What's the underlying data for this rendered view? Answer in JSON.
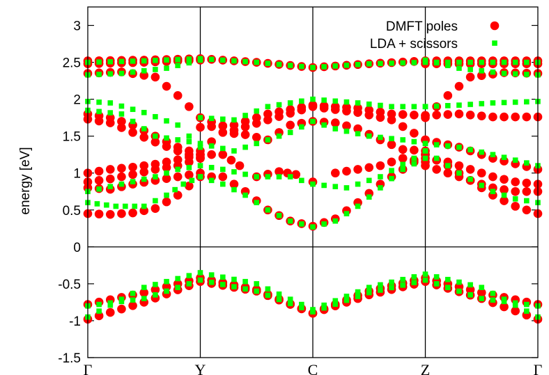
{
  "chart_data": {
    "type": "scatter",
    "title": "",
    "xlabel": "",
    "ylabel": "energy [eV]",
    "ylim": [
      -1.5,
      3.25
    ],
    "xlim": [
      0,
      4
    ],
    "yticks": [
      -1.5,
      -1,
      -0.5,
      0,
      0.5,
      1,
      1.5,
      2,
      2.5,
      3
    ],
    "ytick_labels": [
      "-1.5",
      "-1",
      "-0.5",
      "0",
      "0.5",
      "1",
      "1.5",
      "2",
      "2.5",
      "3"
    ],
    "xticks": [
      0,
      1,
      2,
      3,
      4
    ],
    "xtick_labels": [
      "Γ",
      "Y",
      "C",
      "Z",
      "Γ"
    ],
    "vertical_lines": [
      1,
      2,
      3
    ],
    "horizontal_lines": [
      0
    ],
    "grid": false,
    "legend": "top-right",
    "colors": {
      "dmft": "#ff0000",
      "lda": "#00ff00",
      "axis": "#000000"
    },
    "series": [
      {
        "name": "DMFT poles",
        "marker": "circle",
        "color": "#ff0000",
        "points": []
      },
      {
        "name": "LDA + scissors",
        "marker": "square",
        "color": "#00ff00",
        "points": []
      }
    ],
    "bands": {
      "dmft": [
        {
          "x": [
            0,
            0.5,
            1,
            1.5,
            2,
            2.5,
            3,
            3.5,
            4
          ],
          "y": [
            2.52,
            2.53,
            2.55,
            2.5,
            2.43,
            2.48,
            2.52,
            2.52,
            2.52
          ]
        },
        {
          "x": [
            0,
            0.5,
            1
          ],
          "y": [
            2.48,
            2.5,
            2.53
          ]
        },
        {
          "x": [
            3,
            3.5,
            4
          ],
          "y": [
            2.48,
            2.48,
            2.48
          ]
        },
        {
          "x": [
            0,
            0.3,
            0.6,
            0.8,
            1
          ],
          "y": [
            2.35,
            2.37,
            2.3,
            2.05,
            1.75
          ]
        },
        {
          "x": [
            3,
            3.2,
            3.4,
            3.7,
            4
          ],
          "y": [
            1.75,
            2.05,
            2.3,
            2.36,
            2.35
          ]
        },
        {
          "x": [
            0,
            0.2,
            0.4,
            0.6,
            0.8,
            1
          ],
          "y": [
            1.8,
            1.75,
            1.65,
            1.5,
            1.35,
            1.25
          ]
        },
        {
          "x": [
            0,
            0.2,
            0.4,
            0.6,
            0.8,
            1
          ],
          "y": [
            1.73,
            1.68,
            1.55,
            1.42,
            1.3,
            1.2
          ]
        },
        {
          "x": [
            1,
            1.3,
            1.6,
            2,
            2.4,
            2.7,
            3
          ],
          "y": [
            1.62,
            1.65,
            1.8,
            1.92,
            1.88,
            1.8,
            1.78
          ]
        },
        {
          "x": [
            1,
            1.3,
            1.6,
            2,
            2.4,
            2.7,
            3
          ],
          "y": [
            1.75,
            1.58,
            1.72,
            1.9,
            1.82,
            1.72,
            1.45
          ]
        },
        {
          "x": [
            3,
            3.3,
            3.6,
            4
          ],
          "y": [
            1.78,
            1.8,
            1.76,
            1.76
          ]
        },
        {
          "x": [
            3,
            3.3,
            3.6,
            4
          ],
          "y": [
            1.45,
            1.35,
            1.2,
            1.05
          ]
        },
        {
          "x": [
            1,
            1.2,
            1.4,
            1.6,
            1.8,
            2,
            2.2,
            2.4,
            2.6,
            2.8,
            3
          ],
          "y": [
            1.3,
            1.55,
            1.52,
            1.45,
            1.65,
            1.7,
            1.68,
            1.6,
            1.45,
            1.32,
            1.3
          ]
        },
        {
          "x": [
            1,
            1.1,
            1.2,
            1.35,
            1.5,
            1.7,
            1.85,
            2
          ],
          "y": [
            1.22,
            1.25,
            1.25,
            1.1,
            0.95,
            1.02,
            0.98,
            0.88
          ]
        },
        {
          "x": [
            2.2,
            2.4,
            2.6,
            2.8,
            3
          ],
          "y": [
            1.0,
            1.05,
            1.1,
            1.2,
            1.15
          ]
        },
        {
          "x": [
            0,
            0.2,
            0.4,
            0.6,
            0.8,
            1
          ],
          "y": [
            1.0,
            1.05,
            1.08,
            1.12,
            1.18,
            1.25
          ]
        },
        {
          "x": [
            0,
            0.2,
            0.4,
            0.6,
            0.8,
            1
          ],
          "y": [
            0.88,
            0.92,
            0.98,
            1.05,
            1.1,
            1.2
          ]
        },
        {
          "x": [
            0,
            0.2,
            0.4,
            0.6,
            0.8,
            1
          ],
          "y": [
            0.8,
            0.78,
            0.85,
            0.9,
            0.95,
            1.0
          ]
        },
        {
          "x": [
            3,
            3.2,
            3.4,
            3.6,
            3.8,
            4
          ],
          "y": [
            1.2,
            1.15,
            1.05,
            0.95,
            0.88,
            0.85
          ]
        },
        {
          "x": [
            3,
            3.2,
            3.4,
            3.6,
            3.8,
            4
          ],
          "y": [
            1.1,
            1.0,
            0.9,
            0.8,
            0.75,
            0.75
          ]
        },
        {
          "x": [
            0,
            0.2,
            0.4,
            0.6,
            0.8,
            1,
            1.2,
            1.4,
            1.6,
            1.8,
            2,
            2.2,
            2.4,
            2.6,
            2.8,
            3
          ],
          "y": [
            0.45,
            0.44,
            0.46,
            0.52,
            0.7,
            0.95,
            0.95,
            0.75,
            0.5,
            0.35,
            0.28,
            0.38,
            0.6,
            0.85,
            1.05,
            1.25
          ]
        },
        {
          "x": [
            3,
            3.2,
            3.4,
            3.6,
            3.8,
            4
          ],
          "y": [
            1.25,
            1.1,
            0.9,
            0.7,
            0.55,
            0.45
          ]
        },
        {
          "x": [
            0,
            0.5,
            1,
            1.5,
            2,
            2.5,
            3,
            3.5,
            4
          ],
          "y": [
            -0.98,
            -0.75,
            -0.47,
            -0.6,
            -0.9,
            -0.65,
            -0.47,
            -0.7,
            -0.98
          ]
        },
        {
          "x": [
            0,
            0.5,
            1,
            1.5,
            2,
            2.5,
            3,
            3.5,
            4
          ],
          "y": [
            -0.78,
            -0.62,
            -0.42,
            -0.58,
            -0.9,
            -0.6,
            -0.42,
            -0.62,
            -0.78
          ]
        }
      ],
      "lda": [
        {
          "x": [
            0,
            0.5,
            1,
            1.5,
            2,
            2.5,
            3,
            3.5,
            4
          ],
          "y": [
            2.5,
            2.52,
            2.55,
            2.5,
            2.43,
            2.48,
            2.5,
            2.5,
            2.5
          ]
        },
        {
          "x": [
            0,
            0.3,
            0.7,
            1
          ],
          "y": [
            2.33,
            2.35,
            2.42,
            2.53
          ]
        },
        {
          "x": [
            3,
            3.3,
            3.7,
            4
          ],
          "y": [
            2.53,
            2.42,
            2.35,
            2.33
          ]
        },
        {
          "x": [
            0,
            0.2,
            0.5,
            0.8,
            1
          ],
          "y": [
            1.97,
            1.95,
            1.82,
            1.65,
            1.35
          ]
        },
        {
          "x": [
            1,
            1.3,
            1.6,
            2,
            2.4,
            2.7,
            3
          ],
          "y": [
            1.75,
            1.72,
            1.9,
            2.0,
            1.95,
            1.9,
            1.9
          ]
        },
        {
          "x": [
            3,
            3.3,
            3.6,
            4
          ],
          "y": [
            1.9,
            1.92,
            1.95,
            1.97
          ]
        },
        {
          "x": [
            0,
            0.3,
            0.6,
            0.8,
            1,
            1.3,
            1.6,
            1.8,
            2,
            2.2,
            2.5,
            2.8,
            3
          ],
          "y": [
            1.85,
            1.8,
            1.5,
            1.45,
            1.4,
            1.3,
            1.45,
            1.55,
            1.7,
            1.6,
            1.5,
            1.45,
            1.4
          ]
        },
        {
          "x": [
            3,
            3.3,
            3.6,
            4
          ],
          "y": [
            1.4,
            1.35,
            1.25,
            1.1
          ]
        },
        {
          "x": [
            0,
            0.3,
            0.6,
            0.8,
            1,
            1.2,
            1.5,
            1.8,
            2,
            2.3,
            2.6,
            2.9,
            3
          ],
          "y": [
            0.75,
            0.85,
            0.95,
            1.05,
            1.1,
            1.05,
            0.95,
            0.95,
            0.85,
            0.8,
            0.95,
            1.2,
            1.3
          ]
        },
        {
          "x": [
            0,
            0.25,
            0.5,
            0.7,
            0.85,
            1
          ],
          "y": [
            0.6,
            0.55,
            0.55,
            0.7,
            0.85,
            0.95
          ]
        },
        {
          "x": [
            3,
            3.3,
            3.6,
            3.8,
            4
          ],
          "y": [
            1.3,
            1.0,
            0.75,
            0.65,
            0.6
          ]
        },
        {
          "x": [
            1,
            1.2,
            1.4,
            1.6,
            1.8,
            2,
            2.2,
            2.4,
            2.6,
            2.8,
            3
          ],
          "y": [
            0.95,
            0.85,
            0.7,
            0.5,
            0.35,
            0.27,
            0.35,
            0.55,
            0.8,
            1.05,
            1.2
          ]
        },
        {
          "x": [
            0,
            0.5,
            1,
            1.5,
            2,
            2.5,
            3,
            3.5,
            4
          ],
          "y": [
            -0.95,
            -0.55,
            -0.35,
            -0.5,
            -0.85,
            -0.55,
            -0.37,
            -0.55,
            -0.95
          ]
        },
        {
          "x": [
            0,
            0.5,
            1,
            1.5,
            2,
            2.5,
            3,
            3.5,
            4
          ],
          "y": [
            -0.8,
            -0.7,
            -0.45,
            -0.6,
            -0.88,
            -0.62,
            -0.45,
            -0.7,
            -0.8
          ]
        }
      ]
    }
  }
}
